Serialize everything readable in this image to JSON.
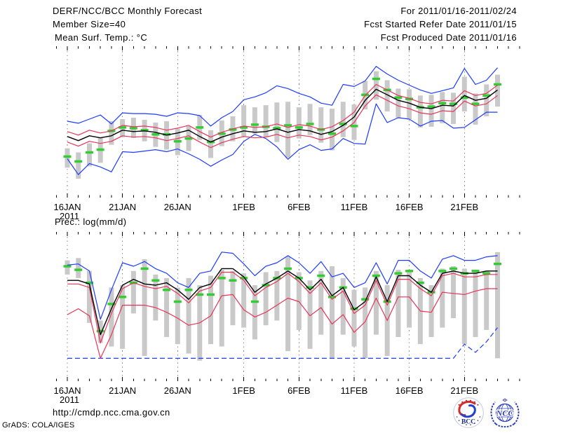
{
  "header": {
    "title": "DERF/NCC/BCC Monthly Forecast",
    "member_size": "Member Size=40",
    "date_range": "For 2011/01/16-2011/02/24",
    "refer_date": "Fcst Started Refer Date 2011/01/15",
    "produced_date": "Fcst Produced Date 2011/01/16"
  },
  "footer": {
    "url": "http://cmdp.ncc.cma.gov.cn",
    "credit": "GrADS: COLA/IGES"
  },
  "logos": {
    "bcc_label": "BCC",
    "ncc_label": "NCC"
  },
  "colors": {
    "extreme_line": "#1e3cff",
    "quartile_line": "#e83558",
    "mean_line": "#000000",
    "observation": "#33cc33",
    "spread_bar": "#c9c9c9",
    "grid": "#8c8c8c",
    "frame": "#000000"
  },
  "chart_data": [
    {
      "type": "line",
      "title": "Mean Surf. Temp.: °C",
      "ylim": [
        -16,
        6
      ],
      "yticks": [
        "6",
        "3",
        "0",
        "-3",
        "-6",
        "-9",
        "-12",
        "-15"
      ],
      "xticks": [
        {
          "day": 0,
          "label": "16JAN",
          "sub": "2011"
        },
        {
          "day": 5,
          "label": "21JAN"
        },
        {
          "day": 10,
          "label": "26JAN"
        },
        {
          "day": 16,
          "label": "1FEB"
        },
        {
          "day": 21,
          "label": "6FEB"
        },
        {
          "day": 26,
          "label": "11FEB"
        },
        {
          "day": 31,
          "label": "16FEB"
        },
        {
          "day": 36,
          "label": "21FEB"
        }
      ],
      "bars": [
        [
          -11.6,
          -8.8
        ],
        [
          -13.2,
          -9.4
        ],
        [
          -11.4,
          -8.1
        ],
        [
          -10.9,
          -7.3
        ],
        [
          -8.3,
          -4.9
        ],
        [
          -7.2,
          -4.6
        ],
        [
          -7.3,
          -4.4
        ],
        [
          -7.8,
          -4.7
        ],
        [
          -8.6,
          -5.1
        ],
        [
          -9.0,
          -4.9
        ],
        [
          -9.8,
          -6.0
        ],
        [
          -9.2,
          -5.6
        ],
        [
          -7.6,
          -4.0
        ],
        [
          -10.2,
          -6.2
        ],
        [
          -8.5,
          -4.8
        ],
        [
          -7.8,
          -4.2
        ],
        [
          -7.1,
          -2.6
        ],
        [
          -6.7,
          -2.9
        ],
        [
          -7.2,
          -2.6
        ],
        [
          -7.9,
          -2.2
        ],
        [
          -10.2,
          -2.1
        ],
        [
          -7.4,
          -2.9
        ],
        [
          -6.9,
          -2.4
        ],
        [
          -8.0,
          -2.9
        ],
        [
          -9.1,
          -3.1
        ],
        [
          -7.2,
          -2.1
        ],
        [
          -7.6,
          -2.5
        ],
        [
          -3.2,
          0.9
        ],
        [
          -1.8,
          2.3
        ],
        [
          -3.5,
          1.0
        ],
        [
          -4.4,
          -0.2
        ],
        [
          -4.6,
          -0.3
        ],
        [
          -5.8,
          -1.2
        ],
        [
          -5.7,
          -1.1
        ],
        [
          -5.2,
          -0.7
        ],
        [
          -5.3,
          -0.8
        ],
        [
          -3.5,
          1.5
        ],
        [
          -5.4,
          -0.9
        ],
        [
          -4.2,
          0.4
        ],
        [
          -2.8,
          1.8
        ]
      ],
      "series": [
        {
          "name": "ensemble-max",
          "color": "extreme_line",
          "width": 1.2,
          "values": [
            -4.9,
            -5.2,
            -4.6,
            -4.0,
            -5.3,
            -3.7,
            -3.8,
            -3.8,
            -3.9,
            -4.2,
            -3.7,
            -3.8,
            -4.1,
            -5.6,
            -4.4,
            -3.5,
            -1.8,
            -1.4,
            -0.8,
            0.2,
            -0.2,
            -0.9,
            -1.4,
            -2.3,
            -2.6,
            0.4,
            0.1,
            0.9,
            3.0,
            1.9,
            1.0,
            0.3,
            -0.4,
            -0.9,
            -0.5,
            -0.1,
            2.7,
            0.4,
            1.0,
            2.8
          ]
        },
        {
          "name": "ensemble-min",
          "color": "extreme_line",
          "width": 1.2,
          "values": [
            -10.3,
            -12.6,
            -11.0,
            -11.5,
            -12.2,
            -9.3,
            -9.4,
            -9.2,
            -9.0,
            -9.3,
            -8.9,
            -9.6,
            -10.4,
            -11.4,
            -10.5,
            -9.7,
            -7.8,
            -6.8,
            -7.4,
            -8.6,
            -10.4,
            -9.0,
            -8.3,
            -9.1,
            -8.9,
            -7.4,
            -8.1,
            -8.2,
            -2.4,
            -5.1,
            -4.4,
            -4.6,
            -5.6,
            -4.9,
            -4.8,
            -5.9,
            -5.8,
            -4.7,
            -3.6,
            -3.6
          ]
        },
        {
          "name": "upper-spread",
          "color": "quartile_line",
          "width": 1.2,
          "values": [
            -6.4,
            -6.9,
            -6.2,
            -6.6,
            -6.3,
            -5.5,
            -5.7,
            -5.6,
            -5.8,
            -6.2,
            -5.9,
            -5.5,
            -6.4,
            -7.2,
            -6.5,
            -6.0,
            -5.6,
            -5.8,
            -5.7,
            -5.3,
            -5.8,
            -5.4,
            -5.6,
            -6.1,
            -5.7,
            -4.8,
            -3.6,
            -1.2,
            0.4,
            -0.4,
            -1.2,
            -1.6,
            -2.2,
            -2.4,
            -1.9,
            -2.0,
            -0.5,
            -1.2,
            -0.9,
            0.3
          ]
        },
        {
          "name": "lower-spread",
          "color": "quartile_line",
          "width": 1.2,
          "values": [
            -7.9,
            -8.5,
            -7.8,
            -8.1,
            -7.8,
            -7.0,
            -7.2,
            -7.1,
            -7.3,
            -7.7,
            -7.4,
            -7.0,
            -7.9,
            -8.7,
            -8.0,
            -7.5,
            -7.1,
            -7.3,
            -7.2,
            -6.8,
            -7.3,
            -6.9,
            -7.1,
            -7.6,
            -7.2,
            -6.3,
            -5.1,
            -2.7,
            -1.1,
            -1.9,
            -2.7,
            -3.1,
            -3.7,
            -3.9,
            -3.4,
            -3.5,
            -2.0,
            -2.7,
            -2.4,
            -1.2
          ]
        },
        {
          "name": "ensemble-mean",
          "color": "mean_line",
          "width": 1.4,
          "values": [
            -7.1,
            -7.7,
            -7.0,
            -7.3,
            -7.0,
            -6.2,
            -6.4,
            -6.3,
            -6.5,
            -6.9,
            -6.6,
            -6.2,
            -7.1,
            -7.9,
            -7.2,
            -6.7,
            -6.3,
            -6.5,
            -6.4,
            -6.0,
            -6.5,
            -6.1,
            -6.3,
            -6.8,
            -6.4,
            -5.5,
            -4.3,
            -1.9,
            -0.3,
            -1.1,
            -1.9,
            -2.3,
            -2.9,
            -3.1,
            -2.6,
            -2.7,
            -1.2,
            -1.9,
            -1.6,
            -0.4
          ]
        }
      ],
      "obs": {
        "name": "observation",
        "color": "observation",
        "values": [
          -10.0,
          -10.7,
          -9.4,
          -9.0,
          -6.3,
          -5.8,
          -5.9,
          -6.2,
          -6.8,
          -6.8,
          -7.8,
          -7.4,
          -5.8,
          -7.9,
          -6.7,
          -6.1,
          -5.8,
          -5.4,
          -5.7,
          -5.9,
          -5.5,
          -5.8,
          -5.3,
          -6.1,
          -6.7,
          -5.3,
          -5.6,
          -1.1,
          1.2,
          -0.4,
          -1.5,
          -1.7,
          -2.9,
          -2.8,
          -2.3,
          -2.4,
          -1.5,
          -2.4,
          -1.2,
          0.4
        ]
      }
    },
    {
      "type": "line",
      "title": "Prec.: log(mm/d)",
      "ylim": [
        -5,
        1.4
      ],
      "yticks": [
        "1",
        "0",
        "-1",
        "-2",
        "-3",
        "-4",
        "-5"
      ],
      "xticks": [
        {
          "day": 0,
          "label": "16JAN",
          "sub": "2011"
        },
        {
          "day": 5,
          "label": "21JAN"
        },
        {
          "day": 10,
          "label": "26JAN"
        },
        {
          "day": 16,
          "label": "1FEB"
        },
        {
          "day": 21,
          "label": "6FEB"
        },
        {
          "day": 26,
          "label": "11FEB"
        },
        {
          "day": 31,
          "label": "16FEB"
        },
        {
          "day": 36,
          "label": "21FEB"
        }
      ],
      "bars": [
        [
          -0.45,
          0.15
        ],
        [
          -0.6,
          0.25
        ],
        [
          -2.5,
          -0.3
        ],
        [
          -3.35,
          -2.4
        ],
        [
          -3.5,
          -1.0
        ],
        [
          -3.6,
          -0.9
        ],
        [
          -2.1,
          -0.3
        ],
        [
          -3.9,
          0.2
        ],
        [
          -2.4,
          -0.45
        ],
        [
          -3.1,
          -0.6
        ],
        [
          -3.4,
          -1.0
        ],
        [
          -3.8,
          -0.6
        ],
        [
          -4.1,
          -0.9
        ],
        [
          -3.4,
          -0.5
        ],
        [
          -3.5,
          -0.25
        ],
        [
          -2.6,
          -0.3
        ],
        [
          -2.7,
          -0.4
        ],
        [
          -3.2,
          -0.9
        ],
        [
          -2.6,
          -0.35
        ],
        [
          -2.4,
          -0.3
        ],
        [
          -3.7,
          0.3
        ],
        [
          -2.8,
          -0.35
        ],
        [
          -3.6,
          -0.7
        ],
        [
          -3.0,
          -0.3
        ],
        [
          -4.0,
          -0.1
        ],
        [
          -3.0,
          -0.6
        ],
        [
          -3.5,
          -1.1
        ],
        [
          -4.0,
          -1.0
        ],
        [
          -3.0,
          -0.3
        ],
        [
          -3.9,
          -0.9
        ],
        [
          -3.1,
          -0.25
        ],
        [
          -2.7,
          -0.3
        ],
        [
          -3.4,
          -0.6
        ],
        [
          -3.1,
          -0.9
        ],
        [
          -2.7,
          -0.2
        ],
        [
          -2.3,
          -0.1
        ],
        [
          -3.4,
          -0.2
        ],
        [
          -3.1,
          -0.3
        ],
        [
          -2.8,
          -0.3
        ],
        [
          -4.0,
          0.5
        ]
      ],
      "series": [
        {
          "name": "ensemble-max",
          "color": "extreme_line",
          "width": 1.2,
          "values": [
            -0.05,
            0.0,
            -0.3,
            -2.35,
            -1.1,
            0.05,
            -0.1,
            0.1,
            -0.2,
            -0.4,
            -0.8,
            -1.0,
            -0.4,
            -0.3,
            0.5,
            0.45,
            0.0,
            -0.5,
            -0.1,
            0.05,
            0.35,
            0.05,
            -0.4,
            0.1,
            -0.55,
            -0.4,
            -1.0,
            -0.8,
            0.05,
            -0.85,
            0.15,
            0.15,
            -0.3,
            -0.6,
            0.2,
            0.35,
            0.15,
            0.15,
            0.3,
            0.35
          ]
        },
        {
          "name": "ensemble-min",
          "color": "extreme_line",
          "width": 1.2,
          "dash": "7 4",
          "values": [
            -4,
            -4,
            -4,
            -4,
            -4,
            -4,
            -4,
            -4,
            -4,
            -4,
            -4,
            -4,
            -4,
            -4,
            -4,
            -4,
            -4,
            -4,
            -4,
            -4,
            -4,
            -4,
            -4,
            -4,
            -4,
            -4,
            -4,
            -4,
            -4,
            -4,
            -4,
            -4,
            -4,
            -4,
            -4,
            -4,
            -3.4,
            -3.75,
            -3.3,
            -2.7
          ]
        },
        {
          "name": "upper-spread",
          "color": "quartile_line",
          "width": 1.2,
          "values": [
            -0.85,
            -0.85,
            -1.0,
            -3.35,
            -2.1,
            -1.05,
            -0.8,
            -0.95,
            -1.05,
            -0.95,
            -1.25,
            -1.65,
            -1.15,
            -1.0,
            -0.35,
            -0.35,
            -0.7,
            -1.35,
            -1.0,
            -0.75,
            -0.4,
            -0.75,
            -1.25,
            -0.8,
            -1.5,
            -1.15,
            -2.1,
            -1.75,
            -0.7,
            -1.75,
            -0.65,
            -0.65,
            -1.05,
            -1.35,
            -0.5,
            -0.4,
            -0.55,
            -0.55,
            -0.45,
            -0.45
          ]
        },
        {
          "name": "lower-spread",
          "color": "quartile_line",
          "width": 1.2,
          "values": [
            -2.15,
            -1.9,
            -2.2,
            -4.0,
            -3.0,
            -1.75,
            -1.75,
            -1.75,
            -1.85,
            -2.05,
            -2.3,
            -2.6,
            -2.5,
            -2.2,
            -1.35,
            -1.3,
            -1.95,
            -2.25,
            -2.05,
            -1.75,
            -1.45,
            -1.6,
            -2.2,
            -1.85,
            -2.55,
            -2.15,
            -2.9,
            -2.45,
            -1.45,
            -2.4,
            -1.4,
            -1.4,
            -2.0,
            -2.05,
            -1.2,
            -1.25,
            -1.3,
            -1.15,
            -1.05,
            -1.05
          ]
        },
        {
          "name": "ensemble-mean",
          "color": "mean_line",
          "width": 1.4,
          "values": [
            -0.7,
            -0.7,
            -0.85,
            -3.0,
            -1.9,
            -0.9,
            -0.65,
            -0.85,
            -0.9,
            -0.8,
            -1.1,
            -1.5,
            -1.0,
            -0.85,
            -0.2,
            -0.2,
            -0.55,
            -1.2,
            -0.85,
            -0.6,
            -0.3,
            -0.6,
            -1.1,
            -0.65,
            -1.35,
            -1.0,
            -1.95,
            -1.6,
            -0.55,
            -1.6,
            -0.5,
            -0.5,
            -0.9,
            -1.2,
            -0.4,
            -0.3,
            -0.4,
            -0.4,
            -0.3,
            -0.3
          ]
        }
      ],
      "obs": {
        "name": "observation",
        "color": "observation",
        "values": [
          -0.1,
          -0.25,
          -0.8,
          -2.85,
          -1.7,
          -1.4,
          -0.8,
          -0.2,
          -0.7,
          -1.1,
          -1.6,
          -1.1,
          -1.3,
          -1.3,
          -0.6,
          -0.7,
          -0.6,
          -1.6,
          -0.9,
          -0.6,
          -0.2,
          -0.6,
          -1.0,
          -0.5,
          -1.4,
          -1.0,
          -1.9,
          -1.5,
          -0.5,
          -1.6,
          -0.4,
          -0.3,
          -0.8,
          -1.2,
          -0.3,
          -0.2,
          -0.4,
          -0.3,
          -0.4,
          0.0
        ]
      }
    }
  ]
}
